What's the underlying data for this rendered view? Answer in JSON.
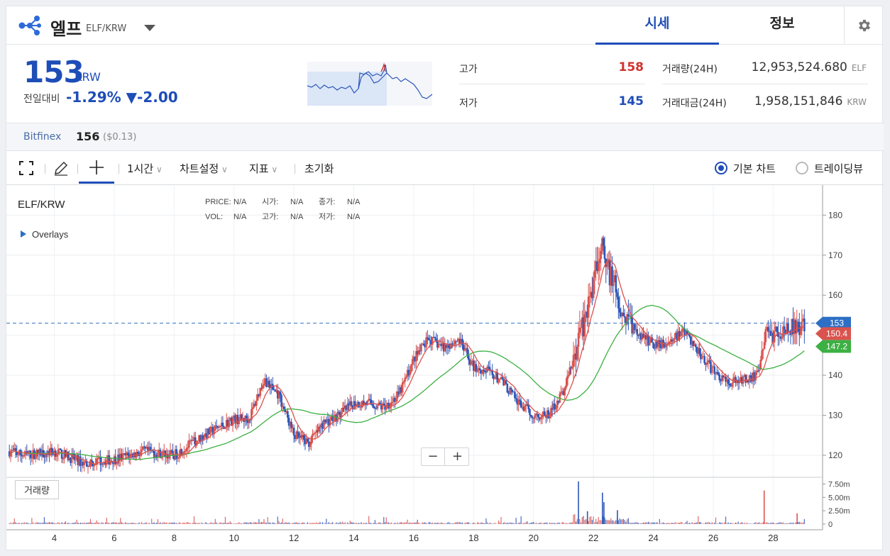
{
  "header": {
    "coin_name": "엘프",
    "pair": "ELF/KRW",
    "tabs": [
      {
        "label": "시세"
      },
      {
        "label": "정보"
      }
    ]
  },
  "summary": {
    "price": "153",
    "price_unit": "KRW",
    "change_label": "전일대비",
    "change_pct": "-1.29%",
    "change_abs": "▼-2.00",
    "high_label": "고가",
    "high_value": "158",
    "low_label": "저가",
    "low_value": "145",
    "volume_label": "거래량(24H)",
    "volume_value": "12,953,524.680",
    "volume_unit": "ELF",
    "amount_label": "거래대금(24H)",
    "amount_value": "1,958,151,846",
    "amount_unit": "KRW"
  },
  "exchange": {
    "name": "Bitfinex",
    "price": "156",
    "usd": "($0.13)"
  },
  "toolbar": {
    "interval": "1시간",
    "chart_settings": "차트설정",
    "indicators": "지표",
    "reset": "초기화",
    "basic_chart": "기본 차트",
    "tradingview": "트레이딩뷰"
  },
  "colors": {
    "up": "#d9534f",
    "down": "#2d56b8",
    "ma_short": "#d9534f",
    "ma_long": "#3cb043",
    "accent": "#1e4db7"
  },
  "chart_data": {
    "type": "candlestick",
    "symbol": "ELF/KRW",
    "legend": {
      "price_label": "PRICE:",
      "price": "N/A",
      "open_label": "시가:",
      "open": "N/A",
      "close_label": "종가:",
      "close": "N/A",
      "vol_label": "VOL:",
      "vol": "N/A",
      "high_label": "고가:",
      "high": "N/A",
      "low_label": "저가:",
      "low": "N/A"
    },
    "overlays_label": "Overlays",
    "x_ticks": [
      "4",
      "6",
      "8",
      "10",
      "12",
      "14",
      "16",
      "18",
      "20",
      "22",
      "24",
      "26",
      "28"
    ],
    "x_tick_values": [
      4,
      6,
      8,
      10,
      12,
      14,
      16,
      18,
      20,
      22,
      24,
      26,
      28
    ],
    "x_range": [
      2.4,
      29.65
    ],
    "y_ticks": [
      "120",
      "130",
      "140",
      "150",
      "160",
      "170",
      "180"
    ],
    "y_range": [
      114.5,
      187.5
    ],
    "current_price": 153,
    "current_label": "153",
    "ma_short_value": 150.4,
    "ma_short_label": "150.4",
    "ma_long_value": 147.2,
    "ma_long_label": "147.2",
    "trend": [
      [
        2.5,
        121
      ],
      [
        3.0,
        120
      ],
      [
        4.0,
        121
      ],
      [
        5.0,
        118
      ],
      [
        6.0,
        119
      ],
      [
        7.0,
        121
      ],
      [
        8.0,
        120
      ],
      [
        9.0,
        125
      ],
      [
        10.0,
        129
      ],
      [
        10.5,
        129
      ],
      [
        11.0,
        139
      ],
      [
        11.5,
        135
      ],
      [
        12.0,
        125
      ],
      [
        12.5,
        123
      ],
      [
        13.0,
        128
      ],
      [
        13.5,
        130
      ],
      [
        14.0,
        133
      ],
      [
        14.5,
        133
      ],
      [
        15.0,
        132
      ],
      [
        15.5,
        135
      ],
      [
        16.0,
        144
      ],
      [
        16.5,
        149
      ],
      [
        17.0,
        147
      ],
      [
        17.5,
        149
      ],
      [
        18.0,
        142
      ],
      [
        18.5,
        141
      ],
      [
        19.0,
        138
      ],
      [
        19.5,
        133
      ],
      [
        20.0,
        130
      ],
      [
        20.5,
        130
      ],
      [
        21.0,
        136
      ],
      [
        21.5,
        148
      ],
      [
        22.0,
        162
      ],
      [
        22.3,
        174
      ],
      [
        22.5,
        166
      ],
      [
        23.0,
        156
      ],
      [
        23.5,
        150
      ],
      [
        24.0,
        148
      ],
      [
        24.5,
        148
      ],
      [
        25.0,
        151
      ],
      [
        25.5,
        146
      ],
      [
        26.0,
        141
      ],
      [
        26.5,
        138
      ],
      [
        27.0,
        139
      ],
      [
        27.5,
        140
      ],
      [
        27.8,
        152
      ],
      [
        28.0,
        150
      ],
      [
        28.5,
        152
      ],
      [
        29.0,
        152
      ]
    ],
    "volume": {
      "y_ticks": [
        "7.50m",
        "5.00m",
        "2.50m",
        "0"
      ],
      "y_range": [
        0,
        8.5
      ],
      "spikes": [
        [
          21.5,
          8.0
        ],
        [
          22.3,
          5.9
        ],
        [
          22.35,
          4.1
        ],
        [
          27.7,
          6.3
        ],
        [
          28.8,
          2.0
        ],
        [
          21.8,
          2.4
        ],
        [
          22.8,
          2.6
        ]
      ]
    }
  },
  "volume_button": "거래량"
}
